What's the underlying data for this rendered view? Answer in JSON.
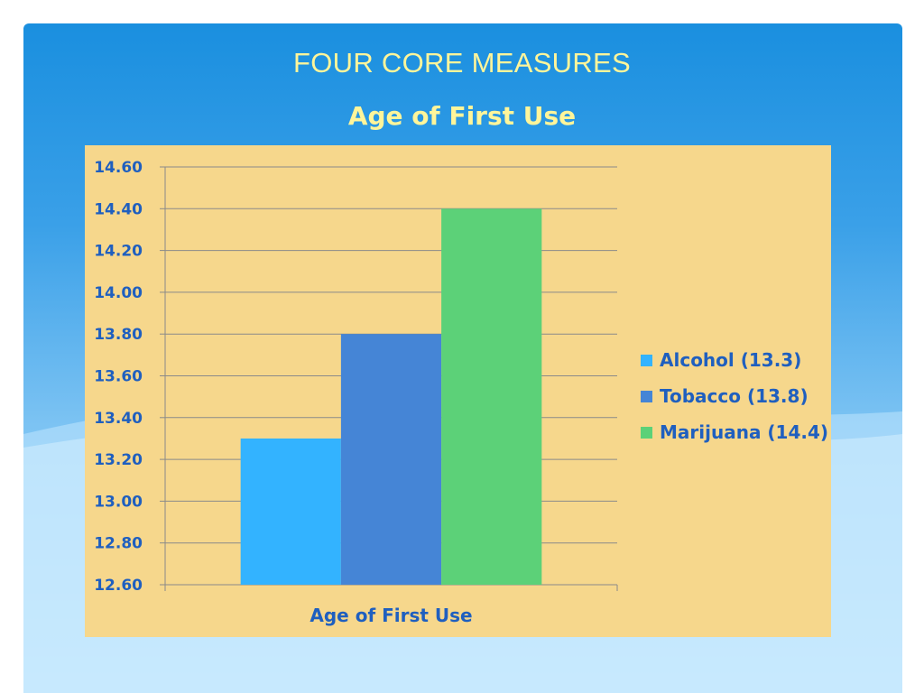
{
  "slide": {
    "title": "FOUR CORE MEASURES",
    "subtitle": "Age of First Use",
    "title_color": "#fff59a",
    "background_colors": [
      "#1a8fdf",
      "#a9dcfb"
    ],
    "chart_background": "#f6d78c"
  },
  "chart_data": {
    "type": "bar",
    "categories": [
      "Age of First Use"
    ],
    "series": [
      {
        "name": "Alcohol (13.3)",
        "values": [
          13.3
        ],
        "color": "#33b3ff"
      },
      {
        "name": "Tobacco (13.8)",
        "values": [
          13.8
        ],
        "color": "#4585d6"
      },
      {
        "name": "Marijuana (14.4)",
        "values": [
          14.4
        ],
        "color": "#5cd178"
      }
    ],
    "ylim": [
      12.6,
      14.6
    ],
    "yticks": [
      "12.60",
      "12.80",
      "13.00",
      "13.20",
      "13.40",
      "13.60",
      "13.80",
      "14.00",
      "14.20",
      "14.40",
      "14.60"
    ],
    "xlabel": "",
    "ylabel": "",
    "grid": true,
    "legend_position": "right",
    "label_color": "#1f5fbf"
  }
}
